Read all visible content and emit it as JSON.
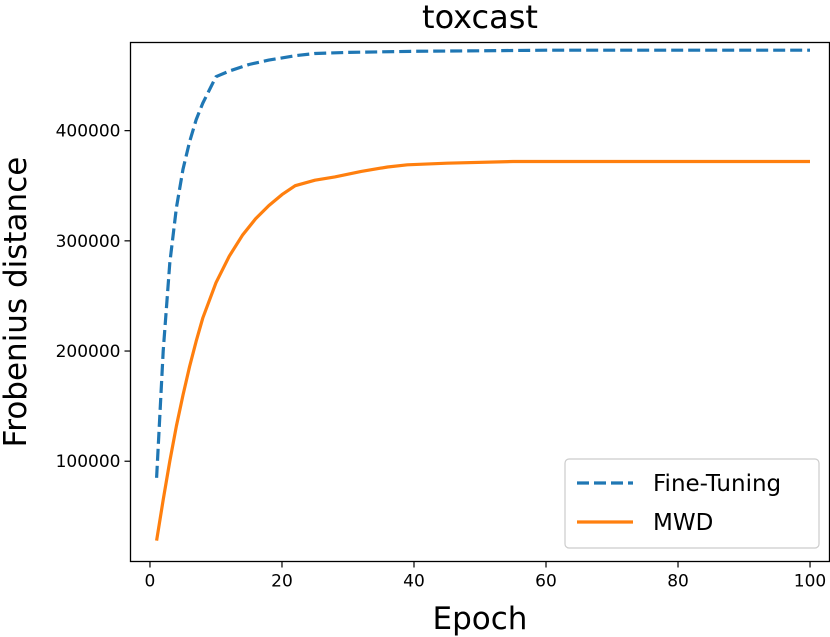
{
  "chart_data": {
    "type": "line",
    "title": "toxcast",
    "xlabel": "Epoch",
    "ylabel": "Frobenius distance",
    "xlim": [
      -2.95,
      102.95
    ],
    "ylim": [
      9000,
      480000
    ],
    "xticks": [
      0,
      20,
      40,
      60,
      80,
      100
    ],
    "yticks": [
      100000,
      200000,
      300000,
      400000
    ],
    "grid": false,
    "legend": "lower-right",
    "series": [
      {
        "name": "Fine-Tuning",
        "color": "#1f77b4",
        "style": "dashed",
        "x": [
          1,
          2,
          3,
          4,
          5,
          6,
          7,
          8,
          9,
          10,
          12,
          15,
          18,
          20,
          22,
          25,
          30,
          40,
          50,
          60,
          70,
          80,
          90,
          100
        ],
        "y": [
          85000,
          200000,
          280000,
          330000,
          365000,
          390000,
          410000,
          425000,
          437000,
          449000,
          454000,
          460000,
          464000,
          466000,
          468000,
          470000,
          471000,
          472000,
          472500,
          473000,
          473000,
          473000,
          473000,
          473000
        ]
      },
      {
        "name": "MWD",
        "color": "#ff7f0e",
        "style": "solid",
        "x": [
          1,
          2,
          3,
          4,
          5,
          6,
          7,
          8,
          10,
          12,
          14,
          16,
          18,
          20,
          22,
          25,
          28,
          32,
          36,
          39,
          45,
          55,
          60,
          70,
          80,
          90,
          100
        ],
        "y": [
          28000,
          65000,
          100000,
          132000,
          160000,
          186000,
          209000,
          230000,
          262000,
          286000,
          305000,
          320000,
          332000,
          342000,
          350000,
          355000,
          358000,
          363000,
          367000,
          369000,
          370500,
          372000,
          372000,
          372000,
          372000,
          372000,
          372000
        ]
      }
    ]
  }
}
